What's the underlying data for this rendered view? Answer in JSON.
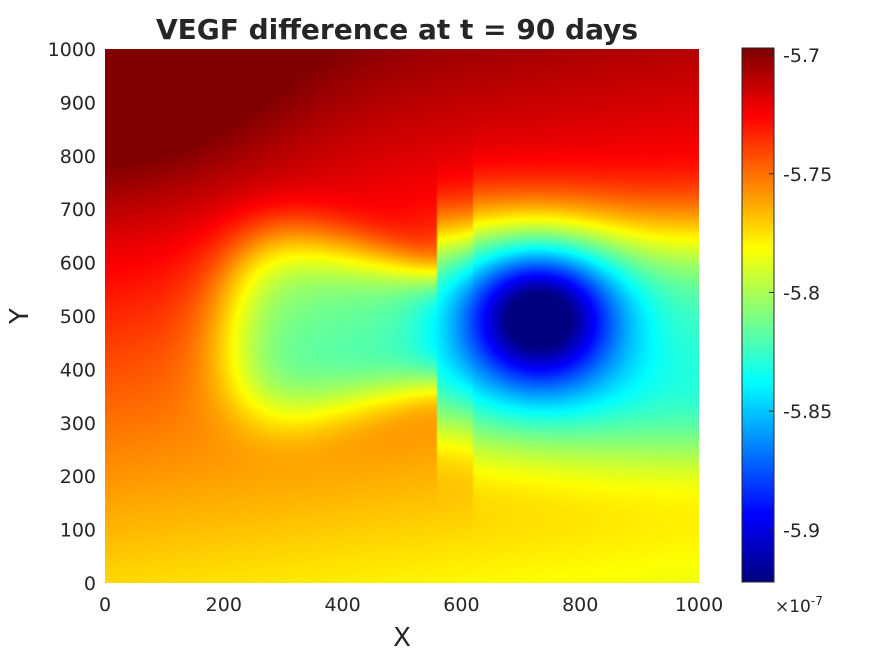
{
  "chart_data": {
    "type": "heatmap",
    "title": "VEGF difference at t = 90 days",
    "xlabel": "X",
    "ylabel": "Y",
    "xlim": [
      0,
      1000
    ],
    "ylim": [
      0,
      1000
    ],
    "x_ticks": [
      0,
      200,
      400,
      600,
      800,
      1000
    ],
    "y_ticks": [
      0,
      100,
      200,
      300,
      400,
      500,
      600,
      700,
      800,
      900,
      1000
    ],
    "x_tick_labels": [
      "0",
      "200",
      "400",
      "600",
      "800",
      "1000"
    ],
    "y_tick_labels": [
      "0",
      "100",
      "200",
      "300",
      "400",
      "500",
      "600",
      "700",
      "800",
      "900",
      "1000"
    ],
    "colormap": "jet",
    "colorbar": {
      "range": [
        -5.922,
        -5.697
      ],
      "ticks": [
        -5.9,
        -5.85,
        -5.8,
        -5.75,
        -5.7
      ],
      "tick_labels": [
        "-5.9",
        "-5.85",
        "-5.8",
        "-5.75",
        "-5.7"
      ],
      "exponent_label": "×10",
      "exponent_power": "-7"
    },
    "features": [
      {
        "description": "minimum (blue well)",
        "x": 730,
        "y": 500,
        "value": -5.922
      },
      {
        "description": "maximum (top-left corner)",
        "x": 0,
        "y": 1000,
        "value": -5.697
      },
      {
        "description": "secondary low plateau",
        "x": 350,
        "y": 380,
        "value": -5.805
      }
    ]
  },
  "colors": {
    "text": "#262626",
    "axis": "#262626",
    "background": "#ffffff"
  }
}
